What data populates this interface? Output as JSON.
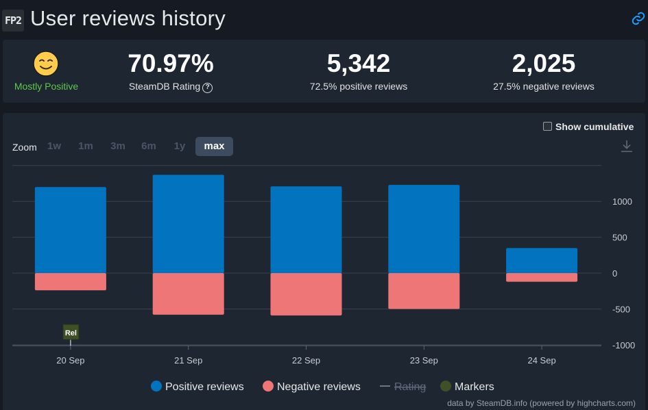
{
  "header": {
    "app_icon_text": "FP2",
    "title": "User reviews history"
  },
  "summary": {
    "rating_label": "Mostly Positive",
    "rating_value": "70.97%",
    "rating_caption": "SteamDB Rating",
    "positive_count": "5,342",
    "positive_caption": "72.5% positive reviews",
    "negative_count": "2,025",
    "negative_caption": "27.5% negative reviews"
  },
  "controls": {
    "cumulative_label": "Show cumulative",
    "zoom_label": "Zoom",
    "zoom_options": [
      "1w",
      "1m",
      "3m",
      "6m",
      "1y",
      "max"
    ],
    "zoom_selected": "max"
  },
  "colors": {
    "positive": "#0273bf",
    "negative": "#ee7676",
    "markers": "#3f5026",
    "rating": "#6b7788"
  },
  "chart_data": {
    "type": "bar",
    "categories": [
      "20 Sep",
      "21 Sep",
      "22 Sep",
      "23 Sep",
      "24 Sep"
    ],
    "series": [
      {
        "name": "Positive reviews",
        "values": [
          1200,
          1370,
          1210,
          1230,
          350
        ]
      },
      {
        "name": "Negative reviews",
        "values": [
          -240,
          -580,
          -590,
          -500,
          -120
        ]
      }
    ],
    "yticks": [
      1000,
      500,
      0,
      -500,
      -1000
    ],
    "ytick_labels": [
      "1000",
      "500",
      "0",
      "-500",
      "-1000"
    ],
    "ylim": [
      -1000,
      1500
    ],
    "grid": true,
    "legend": [
      "Positive reviews",
      "Negative reviews",
      "Rating",
      "Markers"
    ],
    "legend_placement": "bottom",
    "markers": [
      {
        "category": "20 Sep",
        "label": "Rel"
      }
    ]
  },
  "credit": "data by SteamDB.info (powered by highcharts.com)"
}
